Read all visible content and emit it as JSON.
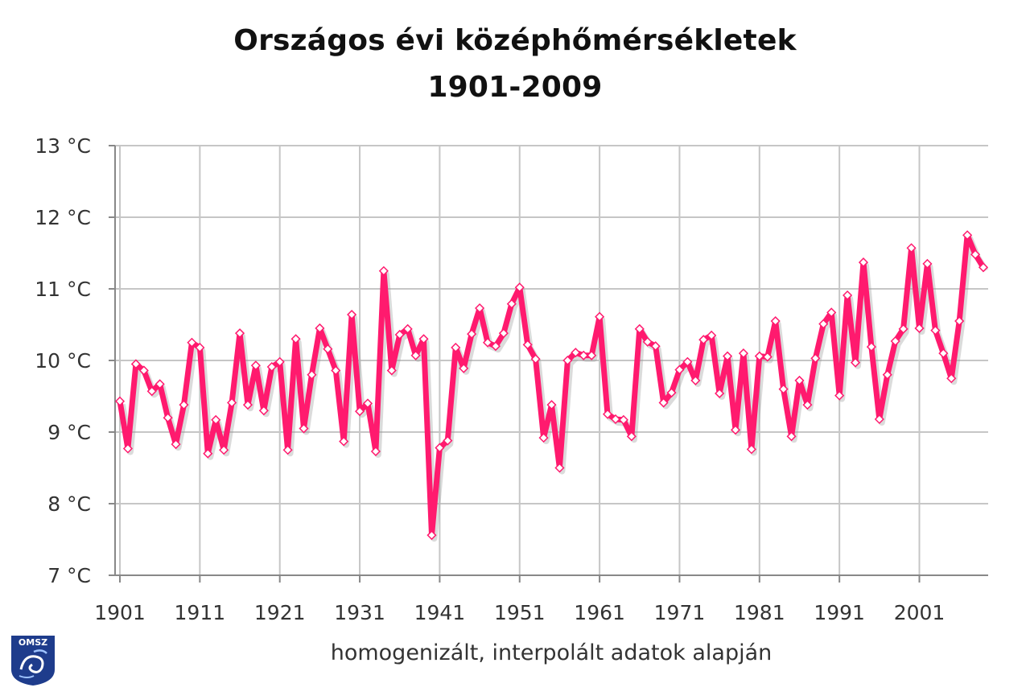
{
  "chart_data": {
    "type": "line",
    "title": "Országos évi középhőmérsékletek",
    "subtitle": "1901-2009",
    "xlabel": "homogenizált, interpolált adatok alapján",
    "ylabel": "",
    "xlim": [
      1901,
      2009
    ],
    "ylim": [
      7,
      13
    ],
    "y_ticks": [
      7,
      8,
      9,
      10,
      11,
      12,
      13
    ],
    "y_tick_labels": [
      "7 °C",
      "8 °C",
      "9 °C",
      "10 °C",
      "11 °C",
      "12 °C",
      "13 °C"
    ],
    "x_ticks": [
      1901,
      1911,
      1921,
      1931,
      1941,
      1951,
      1961,
      1971,
      1981,
      1991,
      2001
    ],
    "x_tick_labels": [
      "1901",
      "1911",
      "1921",
      "1931",
      "1941",
      "1951",
      "1961",
      "1971",
      "1981",
      "1991",
      "2001"
    ],
    "grid": true,
    "series_color": "#ff1a6e",
    "series": [
      {
        "x": [
          1901,
          1902,
          1903,
          1904,
          1905,
          1906,
          1907,
          1908,
          1909,
          1910,
          1911,
          1912,
          1913,
          1914,
          1915,
          1916,
          1917,
          1918,
          1919,
          1920,
          1921,
          1922,
          1923,
          1924,
          1925,
          1926,
          1927,
          1928,
          1929,
          1930,
          1931,
          1932,
          1933,
          1934,
          1935,
          1936,
          1937,
          1938,
          1939,
          1940,
          1941,
          1942,
          1943,
          1944,
          1945,
          1946,
          1947,
          1948,
          1949,
          1950,
          1951,
          1952,
          1953,
          1954,
          1955,
          1956,
          1957,
          1958,
          1959,
          1960,
          1961,
          1962,
          1963,
          1964,
          1965,
          1966,
          1967,
          1968,
          1969,
          1970,
          1971,
          1972,
          1973,
          1974,
          1975,
          1976,
          1977,
          1978,
          1979,
          1980,
          1981,
          1982,
          1983,
          1984,
          1985,
          1986,
          1987,
          1988,
          1989,
          1990,
          1991,
          1992,
          1993,
          1994,
          1995,
          1996,
          1997,
          1998,
          1999,
          2000,
          2001,
          2002,
          2003,
          2004,
          2005,
          2006,
          2007,
          2008,
          2009
        ],
        "values": [
          9.43,
          8.77,
          9.95,
          9.86,
          9.57,
          9.67,
          9.2,
          8.83,
          9.38,
          10.25,
          10.18,
          8.7,
          9.17,
          8.75,
          9.41,
          10.38,
          9.38,
          9.93,
          9.3,
          9.91,
          9.98,
          8.75,
          10.3,
          9.05,
          9.8,
          10.45,
          10.16,
          9.86,
          8.87,
          10.64,
          9.29,
          9.4,
          8.73,
          11.25,
          9.86,
          10.36,
          10.44,
          10.07,
          10.3,
          7.56,
          8.78,
          8.88,
          10.18,
          9.89,
          10.37,
          10.73,
          10.25,
          10.2,
          10.38,
          10.79,
          11.02,
          10.22,
          10.02,
          8.92,
          9.38,
          8.5,
          10.0,
          10.11,
          10.07,
          10.07,
          10.61,
          9.25,
          9.18,
          9.17,
          8.94,
          10.44,
          10.26,
          10.2,
          9.41,
          9.55,
          9.87,
          9.98,
          9.72,
          10.29,
          10.35,
          9.54,
          10.06,
          9.03,
          10.1,
          8.76,
          10.06,
          10.05,
          10.55,
          9.6,
          8.94,
          9.72,
          9.38,
          10.03,
          10.51,
          10.67,
          9.51,
          10.91,
          9.97,
          11.37,
          10.19,
          9.18,
          9.8,
          10.27,
          10.44,
          11.57,
          10.45,
          11.35,
          10.42,
          10.1,
          9.75,
          10.55,
          11.75,
          11.48,
          11.3
        ]
      }
    ]
  },
  "logo": {
    "text": "OMSZ",
    "color": "#1e3c8c"
  }
}
